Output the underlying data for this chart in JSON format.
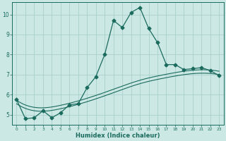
{
  "xlabel": "Humidex (Indice chaleur)",
  "bg_color": "#cce8e4",
  "grid_color": "#aad0cc",
  "line_color": "#1a6b5e",
  "xlim": [
    -0.5,
    23.5
  ],
  "ylim": [
    4.5,
    10.6
  ],
  "yticks": [
    5,
    6,
    7,
    8,
    9,
    10
  ],
  "xticks": [
    0,
    1,
    2,
    3,
    4,
    5,
    6,
    7,
    8,
    9,
    10,
    11,
    12,
    13,
    14,
    15,
    16,
    17,
    18,
    19,
    20,
    21,
    22,
    23
  ],
  "line1_x": [
    0,
    1,
    2,
    3,
    4,
    5,
    6,
    7,
    8,
    9,
    10,
    11,
    12,
    13,
    14,
    15,
    16,
    17,
    18,
    19,
    20,
    21,
    22,
    23
  ],
  "line1_y": [
    5.75,
    4.8,
    4.85,
    5.2,
    4.85,
    5.1,
    5.5,
    5.55,
    6.35,
    6.9,
    8.0,
    9.7,
    9.35,
    10.1,
    10.35,
    9.3,
    8.6,
    7.5,
    7.5,
    7.25,
    7.3,
    7.35,
    7.2,
    6.95
  ],
  "curve2_x": [
    0,
    2,
    5,
    8,
    11,
    14,
    17,
    20,
    23
  ],
  "curve2_y": [
    5.55,
    5.2,
    5.3,
    5.65,
    6.1,
    6.55,
    6.85,
    7.05,
    7.0
  ],
  "curve3_x": [
    0,
    2,
    5,
    8,
    11,
    14,
    17,
    20,
    23
  ],
  "curve3_y": [
    5.6,
    5.25,
    5.35,
    5.7,
    6.15,
    6.6,
    6.9,
    7.1,
    7.05
  ],
  "marker": "D",
  "marker_size": 2.5,
  "xlabel_fontsize": 6.0,
  "tick_fontsize_x": 4.2,
  "tick_fontsize_y": 5.5
}
